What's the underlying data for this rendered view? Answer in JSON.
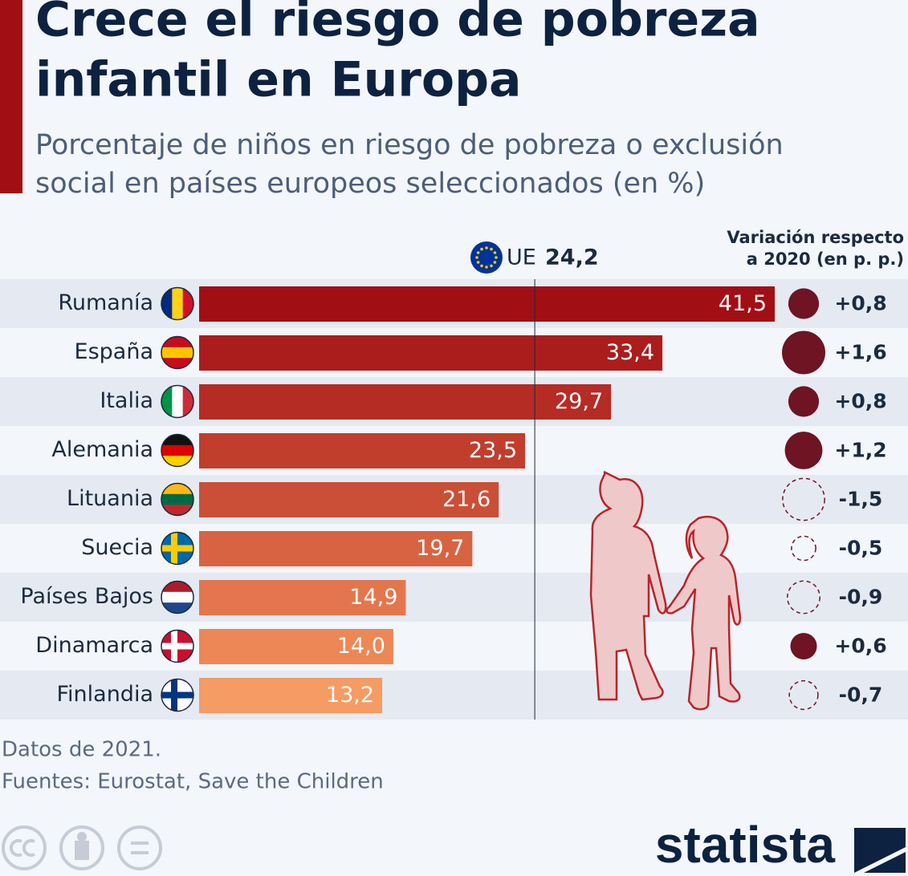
{
  "chart_data": {
    "type": "hbar",
    "title": [
      "Crece el riesgo de pobreza",
      "infantil en Europa"
    ],
    "subtitle": [
      "Porcentaje de niños en riesgo de pobreza o exclusión",
      "social en países europeos seleccionados (en %)"
    ],
    "categories": [
      "Rumanía",
      "España",
      "Italia",
      "Alemania",
      "Lituania",
      "Suecia",
      "Países Bajos",
      "Dinamarca",
      "Finlandia"
    ],
    "values": [
      41.5,
      33.4,
      29.7,
      23.5,
      21.6,
      19.7,
      14.9,
      14.0,
      13.2
    ],
    "value_labels": [
      "41,5",
      "33,4",
      "29,7",
      "23,5",
      "21,6",
      "19,7",
      "14,9",
      "14,0",
      "13,2"
    ],
    "colors": [
      "#a10f15",
      "#ab1d1c",
      "#b52c24",
      "#c13e2d",
      "#ca4f36",
      "#d86342",
      "#e4764d",
      "#ed8756",
      "#f59b64"
    ],
    "reference": {
      "label": "UE",
      "value": 24.2,
      "value_label": "24,2"
    },
    "variation": {
      "title": [
        "Variación respecto",
        "a 2020 (en p. p.)"
      ],
      "values": [
        0.8,
        1.6,
        0.8,
        1.2,
        -1.5,
        -0.5,
        -0.9,
        0.6,
        -0.7
      ],
      "value_labels": [
        "+0,8",
        "+1,6",
        "+0,8",
        "+1,2",
        "-1,5",
        "-0,5",
        "-0,9",
        "+0,6",
        "-0,7"
      ],
      "color": "#6e1423"
    },
    "note": "Datos de 2021.",
    "source": "Fuentes: Eurostat, Save the Children",
    "logo": "statista"
  }
}
